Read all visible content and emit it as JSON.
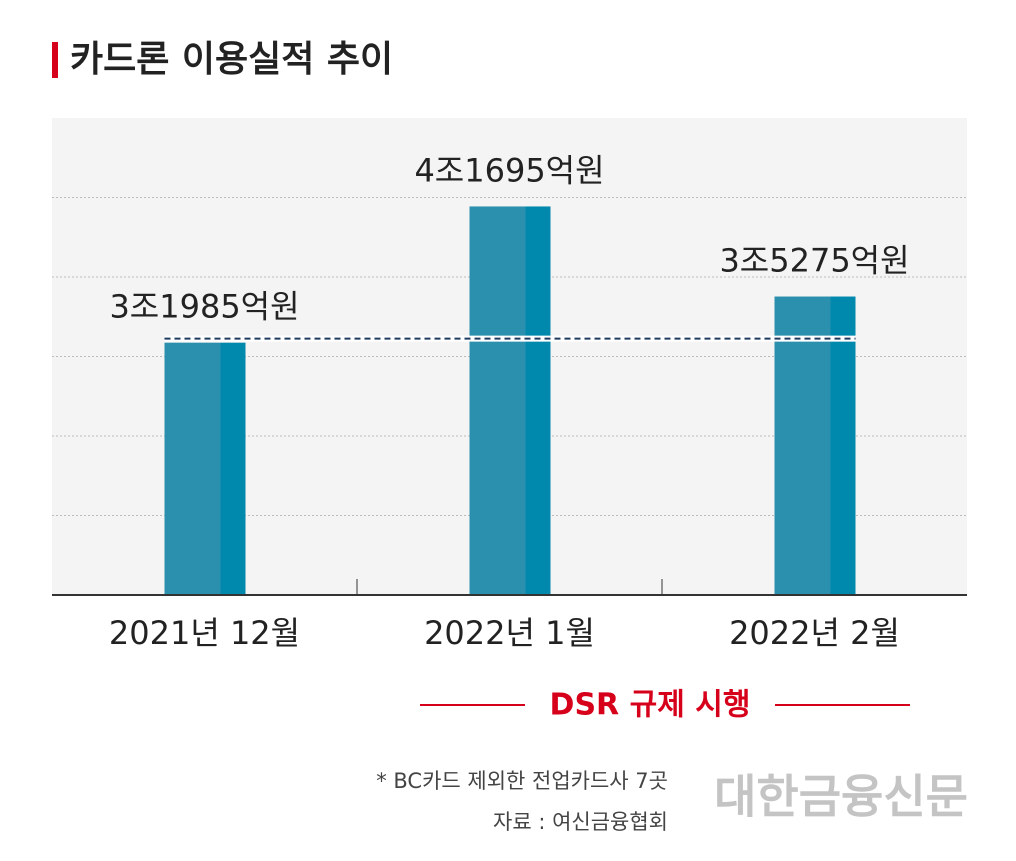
{
  "chart_data": {
    "type": "bar",
    "title": "카드론 이용실적 추이",
    "categories": [
      "2021년 12월",
      "2022년 1월",
      "2022년 2월"
    ],
    "values": [
      31985,
      41695,
      35275
    ],
    "value_labels": [
      "3조1985억원",
      "4조1695억원",
      "3조5275억원"
    ],
    "color": "#2b8fae",
    "ylim": [
      14000,
      48000
    ],
    "grid": true,
    "annotation": "DSR 규제 시행",
    "footnote": "* BC카드 제외한 전업카드사 7곳",
    "source": "자료 : 여신금융협회",
    "watermark": "대한금융신문"
  }
}
